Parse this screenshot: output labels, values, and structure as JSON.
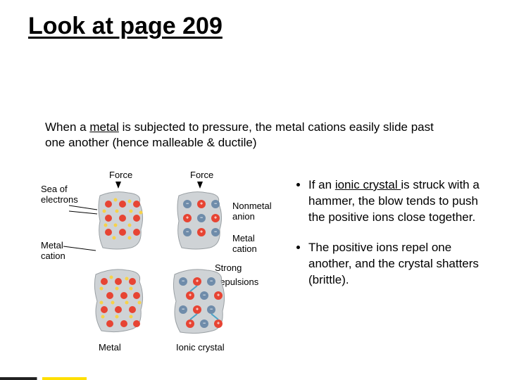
{
  "title": "Look at page 209",
  "intro": {
    "pre": "When a ",
    "u": "metal",
    "post": " is subjected to pressure, the metal cations easily slide past one another (hence malleable & ductile)"
  },
  "labels": {
    "sea": "Sea of\nelectrons",
    "force": "Force",
    "nonmetal_anion": "Nonmetal\nanion",
    "metal_cation": "Metal\ncation",
    "strong": "Strong",
    "repulsions": "repulsions",
    "metal": "Metal",
    "ionic_crystal": "Ionic crystal"
  },
  "bullets": {
    "b1": {
      "pre": "If an ",
      "u": "ionic crystal ",
      "post": "is struck with a hammer, the blow tends to push the positive ions close together."
    },
    "b2": {
      "text": "The positive ions repel one another, and the crystal shatters (brittle)."
    }
  },
  "colors": {
    "shape_fill": "#cfd3d6",
    "positive": "#e74433",
    "negative": "#6f8caa",
    "electron": "#f6d24a"
  }
}
